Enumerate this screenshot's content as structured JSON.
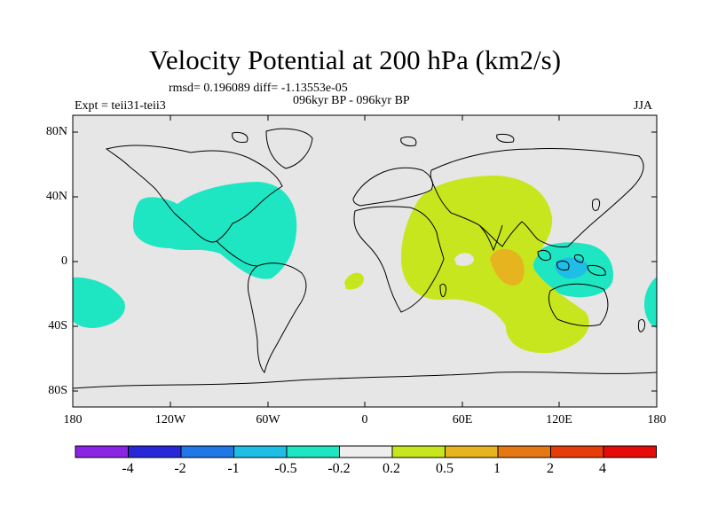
{
  "title": "Velocity Potential at 200 hPa (km2/s)",
  "stats": "rmsd= 0.196089 diff= -1.13553e-05",
  "left_label": "Expt = teii31-teii3",
  "center_label": "096kyr BP - 096kyr BP",
  "right_label": "JJA",
  "lat_ticks": [
    "80N",
    "40N",
    "0",
    "40S",
    "80S"
  ],
  "lon_ticks": [
    "180",
    "120W",
    "60W",
    "0",
    "60E",
    "120E",
    "180"
  ],
  "colorbar": {
    "colors": [
      "#8c24e6",
      "#2828d8",
      "#1e78e6",
      "#1ebee6",
      "#1ee6c3",
      "#eeeeee",
      "#c8e61e",
      "#e6b41e",
      "#e67814",
      "#e63c0a",
      "#e60a0a"
    ],
    "labels": [
      "-4",
      "-2",
      "-1",
      "-0.5",
      "-0.2",
      "0.2",
      "0.5",
      "1",
      "2",
      "4"
    ]
  },
  "map": {
    "ocean_color": "#e6e6e6",
    "negative_color": "#1ee6c3",
    "negative_strong_color": "#1ebee6",
    "positive_color": "#c8e61e",
    "positive_strong_color": "#e6b41e"
  }
}
